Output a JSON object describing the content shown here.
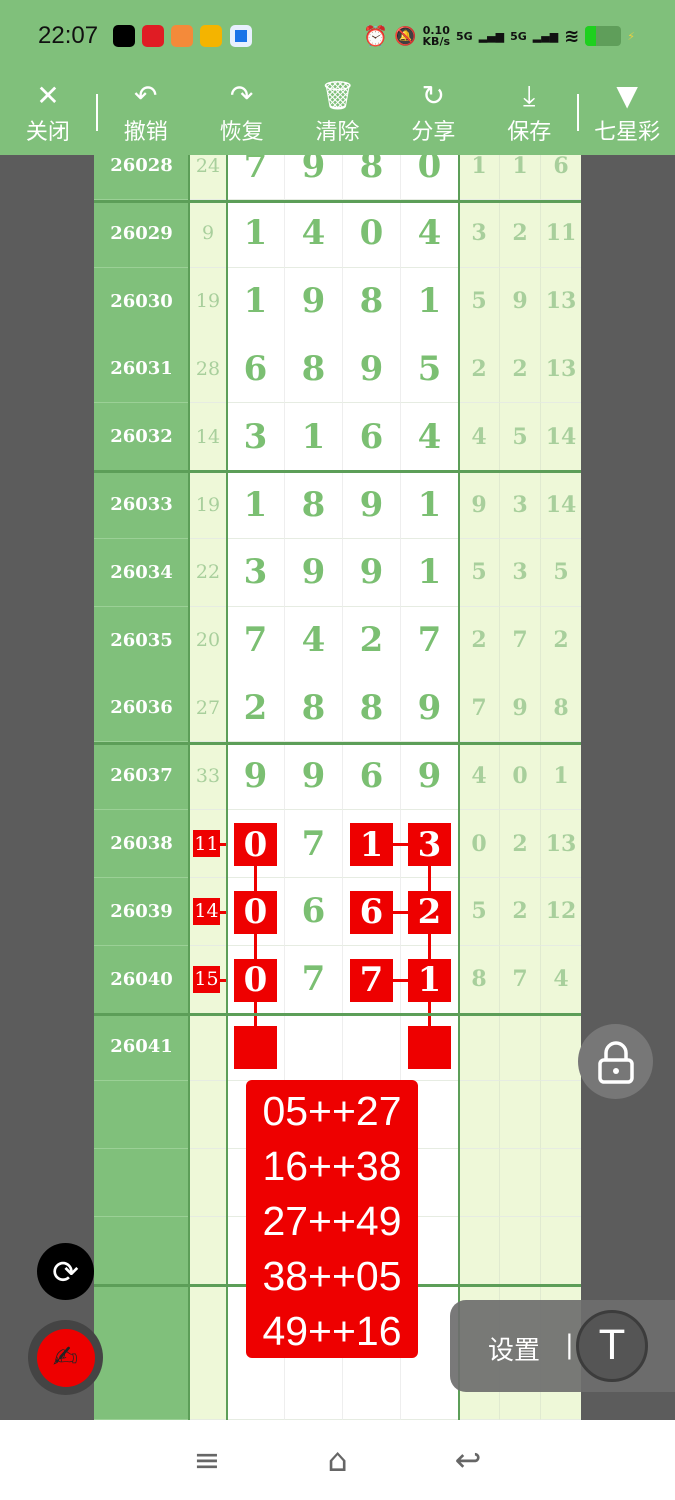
{
  "status_bar": {
    "time": "22:07",
    "net_speed": "0.10",
    "net_unit": "KB/s",
    "signal1": "5G",
    "signal2": "5G",
    "battery_level": 0.3,
    "app_icons": [
      {
        "name": "tiktok-icon",
        "color": "#000000"
      },
      {
        "name": "heart-app-icon",
        "color": "#e01c24"
      },
      {
        "name": "video-app-icon",
        "color": "#f48a3a"
      },
      {
        "name": "coin-app-icon",
        "color": "#f4b400"
      },
      {
        "name": "blue-app-icon",
        "color": "#1a73e8"
      }
    ]
  },
  "toolbar": [
    {
      "id": "close",
      "label": "关闭",
      "icon": "✕"
    },
    {
      "id": "undo",
      "label": "撤销",
      "icon": "↶"
    },
    {
      "id": "redo",
      "label": "恢复",
      "icon": "↷"
    },
    {
      "id": "clear",
      "label": "清除",
      "icon": "🗑"
    },
    {
      "id": "share",
      "label": "分享",
      "icon": "↻"
    },
    {
      "id": "save",
      "label": "保存",
      "icon": "⤓"
    },
    {
      "id": "lottery",
      "label": "七星彩",
      "icon": "▼"
    }
  ],
  "table": {
    "rows": [
      {
        "issue": "26028",
        "sum": "24",
        "digits": [
          "7",
          "9",
          "8",
          "0"
        ],
        "right": [
          "1",
          "1",
          "6"
        ]
      },
      {
        "issue": "26029",
        "sum": "9",
        "digits": [
          "1",
          "4",
          "0",
          "4"
        ],
        "right": [
          "3",
          "2",
          "11"
        ]
      },
      {
        "issue": "26030",
        "sum": "19",
        "digits": [
          "1",
          "9",
          "8",
          "1"
        ],
        "right": [
          "5",
          "9",
          "13"
        ]
      },
      {
        "issue": "26031",
        "sum": "28",
        "digits": [
          "6",
          "8",
          "9",
          "5"
        ],
        "right": [
          "2",
          "2",
          "13"
        ]
      },
      {
        "issue": "26032",
        "sum": "14",
        "digits": [
          "3",
          "1",
          "6",
          "4"
        ],
        "right": [
          "4",
          "5",
          "14"
        ]
      },
      {
        "issue": "26033",
        "sum": "19",
        "digits": [
          "1",
          "8",
          "9",
          "1"
        ],
        "right": [
          "9",
          "3",
          "14"
        ]
      },
      {
        "issue": "26034",
        "sum": "22",
        "digits": [
          "3",
          "9",
          "9",
          "1"
        ],
        "right": [
          "5",
          "3",
          "5"
        ]
      },
      {
        "issue": "26035",
        "sum": "20",
        "digits": [
          "7",
          "4",
          "2",
          "7"
        ],
        "right": [
          "2",
          "7",
          "2"
        ]
      },
      {
        "issue": "26036",
        "sum": "27",
        "digits": [
          "2",
          "8",
          "8",
          "9"
        ],
        "right": [
          "7",
          "9",
          "8"
        ]
      },
      {
        "issue": "26037",
        "sum": "33",
        "digits": [
          "9",
          "9",
          "6",
          "9"
        ],
        "right": [
          "4",
          "0",
          "1"
        ]
      },
      {
        "issue": "26038",
        "sum": "11",
        "digits": [
          "0",
          "7",
          "1",
          "3"
        ],
        "right": [
          "0",
          "2",
          "13"
        ],
        "marked": [
          0,
          2,
          3
        ],
        "sum_marked": true
      },
      {
        "issue": "26039",
        "sum": "14",
        "digits": [
          "0",
          "6",
          "6",
          "2"
        ],
        "right": [
          "5",
          "2",
          "12"
        ],
        "marked": [
          0,
          2,
          3
        ],
        "sum_marked": true
      },
      {
        "issue": "26040",
        "sum": "15",
        "digits": [
          "0",
          "7",
          "7",
          "1"
        ],
        "right": [
          "8",
          "7",
          "4"
        ],
        "marked": [
          0,
          2,
          3
        ],
        "sum_marked": true
      },
      {
        "issue": "26041",
        "sum": "",
        "digits": [
          "",
          "",
          "",
          ""
        ],
        "right": [
          "",
          "",
          ""
        ],
        "marked": [
          0,
          3
        ]
      },
      {
        "issue": "",
        "sum": "",
        "digits": [
          "",
          "",
          "",
          ""
        ],
        "right": [
          "",
          "",
          ""
        ]
      },
      {
        "issue": "",
        "sum": "",
        "digits": [
          "",
          "",
          "",
          ""
        ],
        "right": [
          "",
          "",
          ""
        ]
      },
      {
        "issue": "",
        "sum": "",
        "digits": [
          "",
          "",
          "",
          ""
        ],
        "right": [
          "",
          "",
          ""
        ]
      },
      {
        "issue": "",
        "sum": "",
        "digits": [
          "",
          "",
          "",
          ""
        ],
        "right": [
          "",
          "",
          ""
        ]
      },
      {
        "issue": "",
        "sum": "",
        "digits": [
          "",
          "",
          "",
          ""
        ],
        "right": [
          "",
          "",
          ""
        ]
      }
    ]
  },
  "overlay_lines": [
    "05++27",
    "16++38",
    "27++49",
    "38++05",
    "49++16"
  ],
  "settings": {
    "label": "设置",
    "separator": "|",
    "t_button": "T"
  },
  "nav": {
    "menu": "≡",
    "home": "⌂",
    "back": "↩"
  },
  "colors": {
    "green": "#80c07b",
    "red": "#ee0000",
    "light": "#eef8d8"
  }
}
